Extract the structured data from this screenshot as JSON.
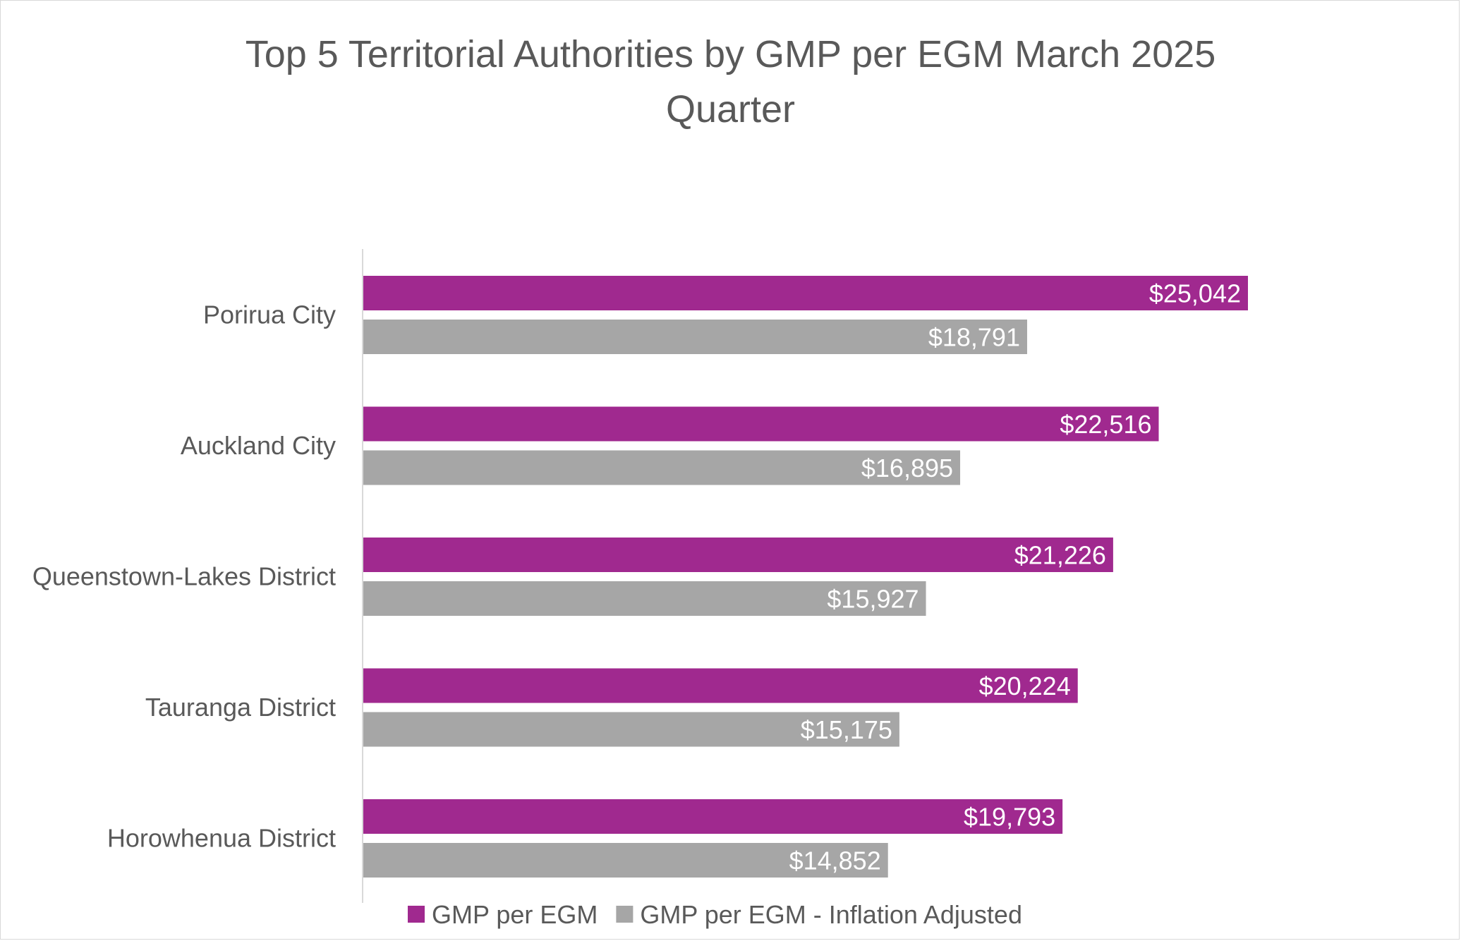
{
  "chart_data": {
    "type": "bar",
    "orientation": "horizontal",
    "title_lines": [
      "Top 5 Territorial Authorities by GMP per EGM March 2025",
      "Quarter"
    ],
    "categories": [
      "Porirua City",
      "Auckland City",
      "Queenstown-Lakes District",
      "Tauranga District",
      "Horowhenua District"
    ],
    "series": [
      {
        "name": "GMP per EGM",
        "color": "#a0298f",
        "values": [
          25042,
          22516,
          21226,
          20224,
          19793
        ],
        "labels": [
          "$25,042",
          "$22,516",
          "$21,226",
          "$20,224",
          "$19,793"
        ]
      },
      {
        "name": "GMP per EGM - Inflation Adjusted",
        "color": "#a6a6a6",
        "values": [
          18791,
          16895,
          15927,
          15175,
          14852
        ],
        "labels": [
          "$18,791",
          "$16,895",
          "$15,927",
          "$15,175",
          "$14,852"
        ]
      }
    ],
    "xlim": [
      0,
      30000
    ],
    "grid": false,
    "legend_position": "bottom"
  }
}
